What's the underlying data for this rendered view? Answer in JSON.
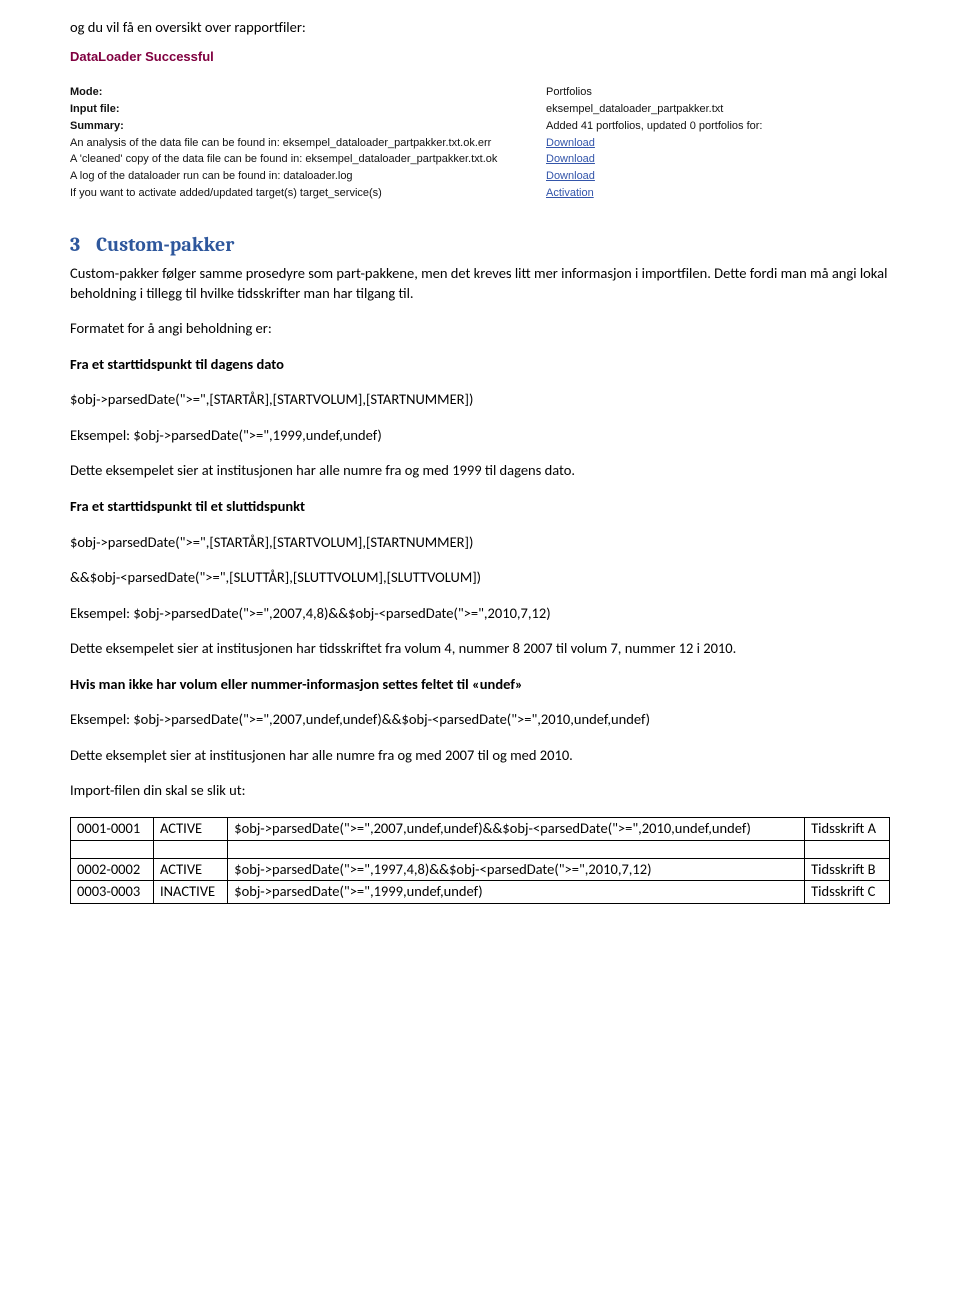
{
  "intro_line": "og du vil få en oversikt over rapportfiler:",
  "dataloader": {
    "title": "DataLoader Successful",
    "rows": [
      {
        "left_bold": "Mode:",
        "left_rest": "",
        "right": "Portfolios",
        "right_is_link": false
      },
      {
        "left_bold": "Input file:",
        "left_rest": "",
        "right": "eksempel_dataloader_partpakker.txt",
        "right_is_link": false
      },
      {
        "left_bold": "Summary:",
        "left_rest": "",
        "right": "Added 41 portfolios, updated 0 portfolios for:",
        "right_is_link": false
      },
      {
        "left_bold": "",
        "left_rest": "An analysis of the data file can be found in: eksempel_dataloader_partpakker.txt.ok.err",
        "right": "Download",
        "right_is_link": true
      },
      {
        "left_bold": "",
        "left_rest": "A 'cleaned' copy of the data file can be found in: eksempel_dataloader_partpakker.txt.ok",
        "right": "Download",
        "right_is_link": true
      },
      {
        "left_bold": "",
        "left_rest": "A log of the dataloader run can be found in: dataloader.log",
        "right": "Download",
        "right_is_link": true
      },
      {
        "left_bold": "",
        "left_rest": "If you want to activate added/updated target(s) target_service(s)",
        "right": "Activation",
        "right_is_link": true
      }
    ]
  },
  "section": {
    "number": "3",
    "title": "Custom-pakker"
  },
  "paragraphs": {
    "p1": "Custom-pakker følger samme prosedyre som part-pakkene, men det kreves litt mer informasjon i importfilen. Dette fordi man må angi lokal beholdning i tillegg til hvilke tidsskrifter man har tilgang til.",
    "p2": "Formatet for å angi beholdning er:",
    "h_a": "Fra et starttidspunkt til dagens dato",
    "code_a1": "$obj->parsedDate(\">=\",[STARTÅR],[STARTVOLUM],[STARTNUMMER])",
    "code_a2": "Eksempel: $obj->parsedDate(\">=\",1999,undef,undef)",
    "p3": "Dette eksempelet sier at institusjonen har alle numre fra og med 1999 til dagens dato.",
    "h_b": "Fra et starttidspunkt til et sluttidspunkt",
    "code_b1": "$obj->parsedDate(\">=\",[STARTÅR],[STARTVOLUM],[STARTNUMMER])",
    "code_b2": "&&$obj-<parsedDate(\">=\",[SLUTTÅR],[SLUTTVOLUM],[SLUTTVOLUM])",
    "code_b3": "Eksempel: $obj->parsedDate(\">=\",2007,4,8)&&$obj-<parsedDate(\">=\",2010,7,12)",
    "p4": "Dette eksempelet sier at institusjonen har tidsskriftet fra volum 4, nummer 8 2007 til volum 7, nummer 12 i 2010.",
    "h_c": "Hvis man ikke har volum eller nummer-informasjon settes feltet til «undef»",
    "code_c1": "Eksempel: $obj->parsedDate(\">=\",2007,undef,undef)&&$obj-<parsedDate(\">=\",2010,undef,undef)",
    "p5": "Dette eksemplet sier at institusjonen har alle numre fra og med 2007 til og med 2010.",
    "p6": "Import-filen din skal se slik ut:"
  },
  "table": {
    "rows": [
      {
        "c1": "0001-0001",
        "c2": "ACTIVE",
        "c3": "$obj->parsedDate(\">=\",2007,undef,undef)&&$obj-<parsedDate(\">=\",2010,undef,undef)",
        "c4": "Tidsskrift A"
      },
      {
        "c1": "0002-0002",
        "c2": "ACTIVE",
        "c3": "$obj->parsedDate(\">=\",1997,4,8)&&$obj-<parsedDate(\">=\",2010,7,12)",
        "c4": "Tidsskrift B"
      },
      {
        "c1": "0003-0003",
        "c2": "INACTIVE",
        "c3": "$obj->parsedDate(\">=\",1999,undef,undef)",
        "c4": "Tidsskrift C"
      }
    ]
  }
}
